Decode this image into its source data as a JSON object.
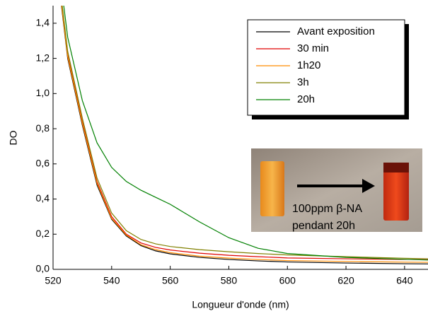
{
  "chart_data": {
    "type": "line",
    "ylabel": "DO",
    "xlabel": "Longueur d'onde (nm)",
    "x": [
      522,
      525,
      530,
      535,
      540,
      545,
      550,
      555,
      560,
      570,
      580,
      590,
      600,
      620,
      640,
      648
    ],
    "series": [
      {
        "name": "Avant exposition",
        "color": "#000000",
        "values": [
          1.62,
          1.2,
          0.82,
          0.48,
          0.285,
          0.19,
          0.135,
          0.105,
          0.088,
          0.068,
          0.056,
          0.048,
          0.042,
          0.036,
          0.032,
          0.031
        ]
      },
      {
        "name": "30 min",
        "color": "#e00000",
        "values": [
          1.64,
          1.22,
          0.84,
          0.5,
          0.3,
          0.2,
          0.15,
          0.125,
          0.11,
          0.092,
          0.08,
          0.072,
          0.065,
          0.06,
          0.056,
          0.055
        ]
      },
      {
        "name": "1h20",
        "color": "#ff8c00",
        "values": [
          1.63,
          1.21,
          0.83,
          0.49,
          0.29,
          0.195,
          0.14,
          0.112,
          0.095,
          0.075,
          0.064,
          0.056,
          0.05,
          0.045,
          0.041,
          0.04
        ]
      },
      {
        "name": "3h",
        "color": "#808000",
        "values": [
          1.66,
          1.24,
          0.86,
          0.52,
          0.32,
          0.22,
          0.17,
          0.145,
          0.13,
          0.112,
          0.1,
          0.09,
          0.082,
          0.072,
          0.063,
          0.06
        ]
      },
      {
        "name": "20h",
        "color": "#008000",
        "values": [
          1.72,
          1.32,
          0.96,
          0.72,
          0.58,
          0.5,
          0.45,
          0.41,
          0.37,
          0.27,
          0.18,
          0.12,
          0.09,
          0.068,
          0.057,
          0.053
        ]
      }
    ],
    "xlim": [
      520,
      648
    ],
    "xticks": [
      520,
      540,
      560,
      580,
      600,
      620,
      640
    ],
    "ylim": [
      0,
      1.5
    ],
    "yticks": [
      {
        "value": 0,
        "label": "0,0"
      },
      {
        "value": 0.2,
        "label": "0,2"
      },
      {
        "value": 0.4,
        "label": "0,4"
      },
      {
        "value": 0.6,
        "label": "0,6"
      },
      {
        "value": 0.8,
        "label": "0,8"
      },
      {
        "value": 1.0,
        "label": "1,0"
      },
      {
        "value": 1.2,
        "label": "1,2"
      },
      {
        "value": 1.4,
        "label": "1,4"
      }
    ],
    "legend": "upper right",
    "annotations": [
      "100ppm β-NA",
      "pendant 20h"
    ]
  }
}
